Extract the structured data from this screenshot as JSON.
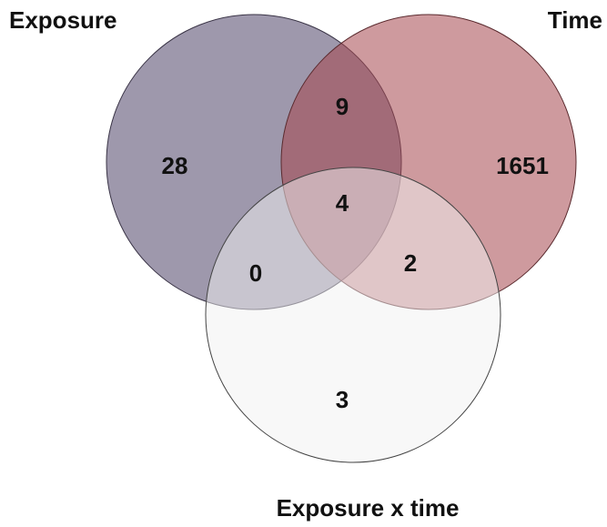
{
  "sets": {
    "exposure": {
      "label": "Exposure",
      "color": "#5e5474"
    },
    "time": {
      "label": "Time",
      "color": "#a6474e"
    },
    "interaction": {
      "label": "Exposure x time",
      "color": "#f2f2f2"
    }
  },
  "regions": {
    "exposure_only": "28",
    "time_only": "1651",
    "interaction_only": "3",
    "exposure_time": "9",
    "exposure_interaction": "0",
    "time_interaction": "2",
    "all_three": "4"
  }
}
